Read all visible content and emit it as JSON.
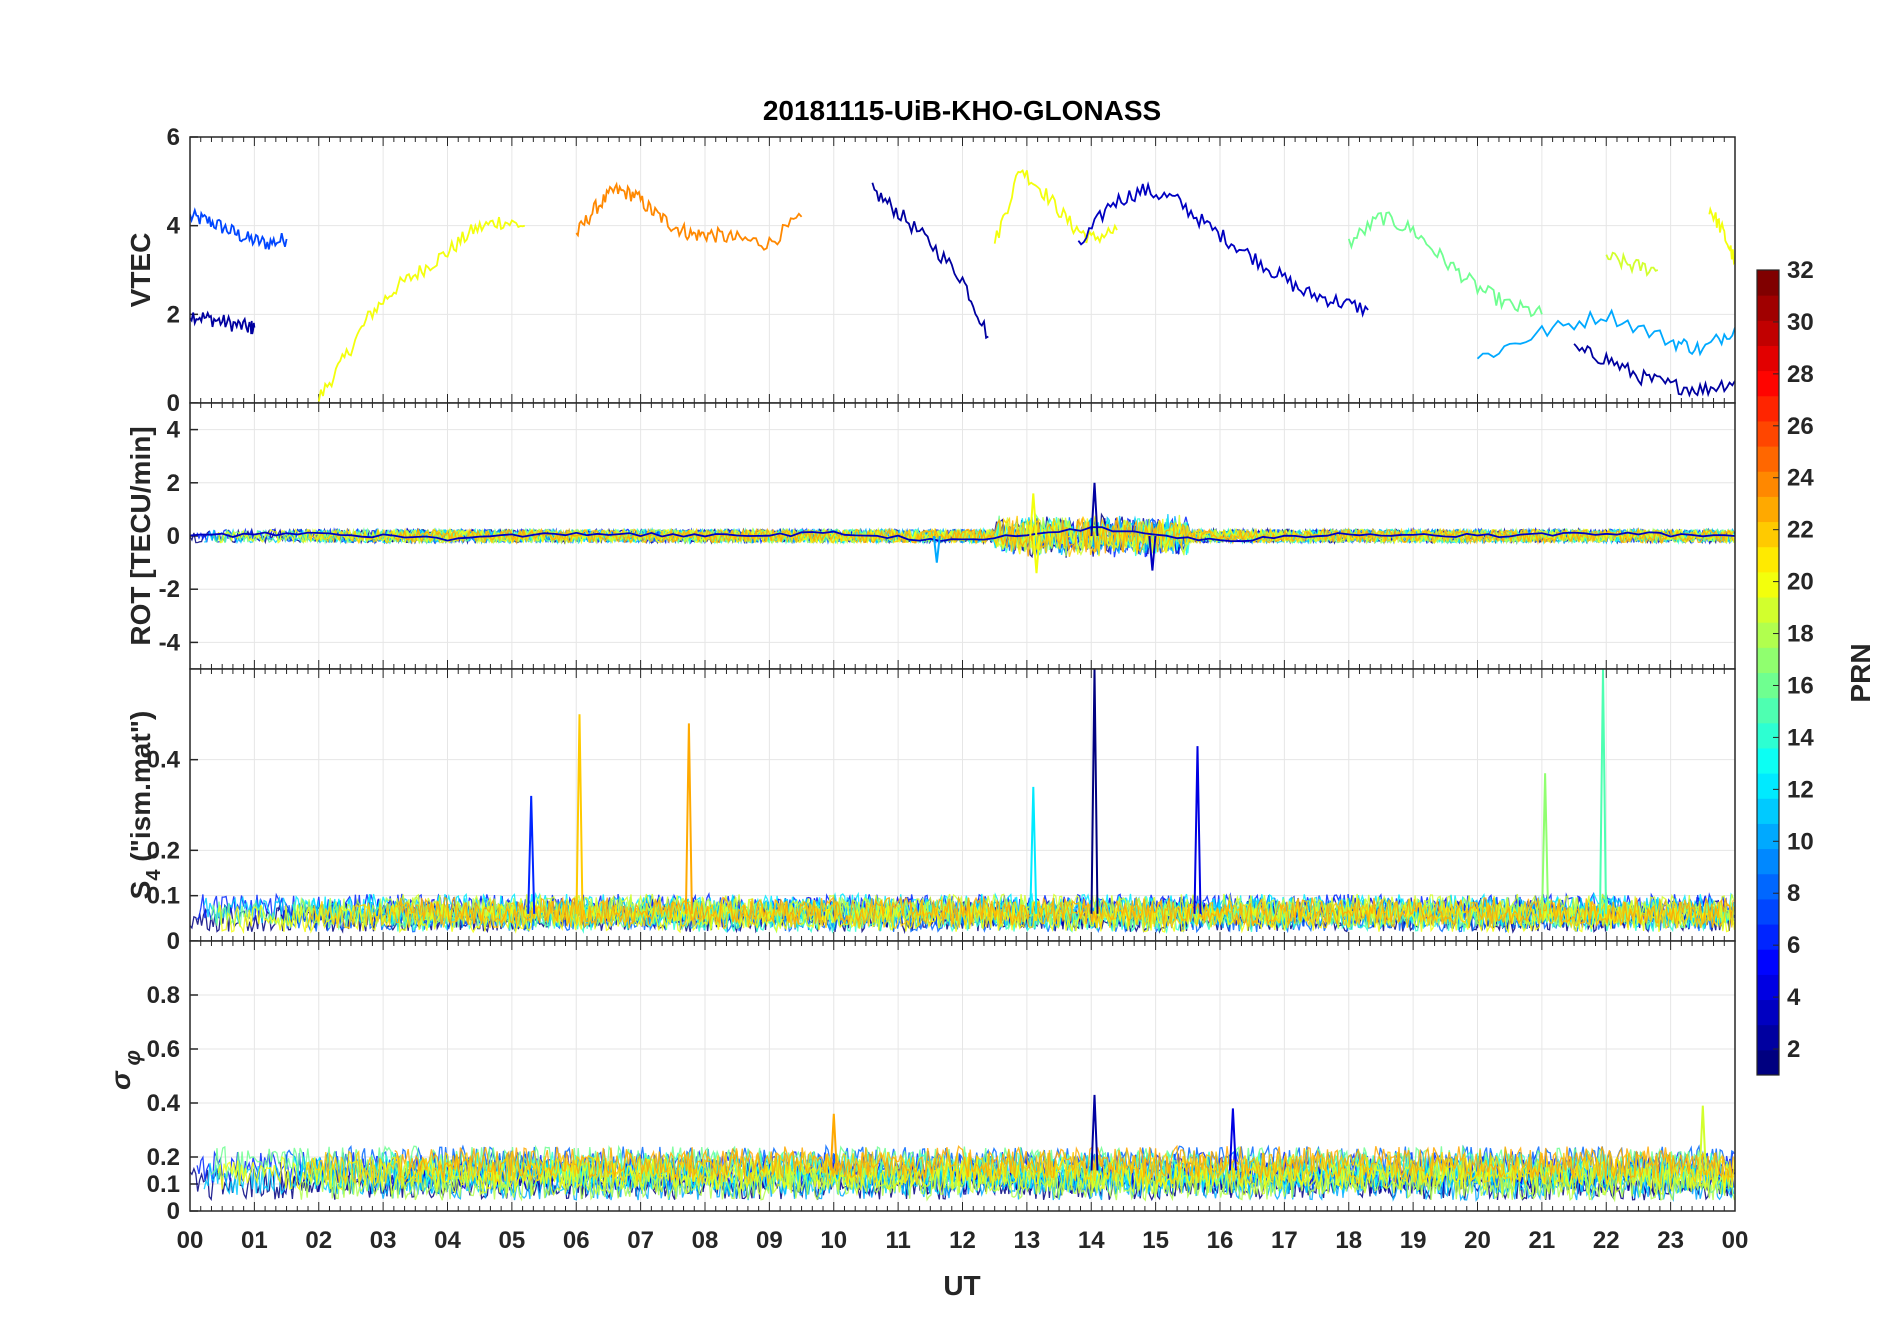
{
  "title": "20181115-UiB-KHO-GLONASS",
  "chart_data": {
    "type": "line",
    "title": "20181115-UiB-KHO-GLONASS",
    "xlabel": "UT",
    "xlim": [
      0,
      24
    ],
    "x_tick_labels": [
      "00",
      "01",
      "02",
      "03",
      "04",
      "05",
      "06",
      "07",
      "08",
      "09",
      "10",
      "11",
      "12",
      "13",
      "14",
      "15",
      "16",
      "17",
      "18",
      "19",
      "20",
      "21",
      "22",
      "23",
      "00"
    ],
    "colorbar": {
      "label": "PRN",
      "range": [
        1,
        32
      ],
      "tick_labels": [
        "2",
        "4",
        "6",
        "8",
        "10",
        "12",
        "14",
        "16",
        "18",
        "20",
        "22",
        "24",
        "26",
        "28",
        "30",
        "32"
      ],
      "colormap": "jet"
    },
    "panels": [
      {
        "ylabel": "VTEC",
        "ylim": [
          0,
          6
        ],
        "y_tick_labels": [
          "0",
          "2",
          "4",
          "6"
        ],
        "series": [
          {
            "prn": 7,
            "x": [
              0,
              0.3,
              0.6,
              0.9,
              1.2,
              1.5
            ],
            "y": [
              4.2,
              4.1,
              3.9,
              3.7,
              3.6,
              3.7
            ]
          },
          {
            "prn": 2,
            "x": [
              0,
              0.3,
              0.6,
              0.9,
              1.0
            ],
            "y": [
              2.0,
              1.9,
              1.8,
              1.7,
              1.7
            ]
          },
          {
            "prn": 20,
            "x": [
              2,
              2.4,
              2.8,
              3.2,
              3.6,
              4.0,
              4.4,
              4.8,
              5.2
            ],
            "y": [
              0.1,
              1.0,
              2.0,
              2.6,
              3.0,
              3.4,
              3.9,
              4.1,
              4.0
            ]
          },
          {
            "prn": 24,
            "x": [
              6.0,
              6.3,
              6.6,
              6.9,
              7.2,
              7.5,
              7.8,
              8.1,
              8.5,
              9.0,
              9.5
            ],
            "y": [
              3.8,
              4.4,
              4.8,
              4.7,
              4.3,
              4.0,
              3.8,
              3.8,
              3.7,
              3.6,
              4.2
            ]
          },
          {
            "prn": 2,
            "x": [
              10.6,
              11,
              11.5,
              12,
              12.4
            ],
            "y": [
              4.8,
              4.3,
              3.6,
              2.8,
              1.5
            ]
          },
          {
            "prn": 20,
            "x": [
              12.5,
              12.9,
              13.3,
              13.7,
              14.0,
              14.4
            ],
            "y": [
              3.6,
              5.3,
              4.7,
              4.0,
              3.7,
              3.9
            ]
          },
          {
            "prn": 3,
            "x": [
              13.8,
              14.3,
              14.8,
              15.3,
              15.8,
              16.3,
              16.8,
              17.3,
              17.8,
              18.3
            ],
            "y": [
              3.5,
              4.5,
              4.8,
              4.6,
              4.0,
              3.5,
              3.0,
              2.5,
              2.3,
              2.1
            ]
          },
          {
            "prn": 16,
            "x": [
              18.0,
              18.5,
              19.0,
              19.5,
              20.0,
              20.5,
              21.0
            ],
            "y": [
              3.6,
              4.2,
              3.9,
              3.2,
              2.6,
              2.2,
              2.0
            ]
          },
          {
            "prn": 19,
            "x": [
              22.0,
              22.4,
              22.8
            ],
            "y": [
              3.3,
              3.1,
              3.0
            ]
          },
          {
            "prn": 20,
            "x": [
              23.6,
              23.8,
              24.0
            ],
            "y": [
              4.4,
              3.9,
              3.2
            ]
          },
          {
            "prn": 2,
            "x": [
              21.5,
              22,
              22.5,
              23,
              23.5,
              24
            ],
            "y": [
              1.2,
              1.0,
              0.6,
              0.4,
              0.3,
              0.5
            ]
          },
          {
            "prn": 10,
            "x": [
              20,
              21,
              22,
              23,
              23.5,
              24
            ],
            "y": [
              1.0,
              1.6,
              2.0,
              1.4,
              1.2,
              1.7
            ]
          }
        ]
      },
      {
        "ylabel": "ROT [TECU/min]",
        "ylim": [
          -5,
          5
        ],
        "y_tick_labels": [
          "-4",
          "-2",
          "0",
          "2",
          "4"
        ],
        "series": [
          {
            "prn": 3,
            "x": [
              0,
              2,
              4,
              6,
              8,
              10,
              12,
              14,
              16,
              18,
              20,
              22,
              24
            ],
            "y": [
              0,
              0.1,
              -0.1,
              0.1,
              0,
              0.1,
              -0.2,
              0.3,
              -0.2,
              0.1,
              0,
              0.1,
              0
            ]
          }
        ],
        "spikes": [
          {
            "prn": 2,
            "x": 14.05,
            "y": 2.0
          },
          {
            "prn": 3,
            "x": 14.95,
            "y": -1.3
          },
          {
            "prn": 20,
            "x": 13.1,
            "y": 1.6
          },
          {
            "prn": 20,
            "x": 13.15,
            "y": -1.4
          },
          {
            "prn": 10,
            "x": 11.6,
            "y": -1.0
          }
        ]
      },
      {
        "ylabel": "S4 (\"ism.mat\")",
        "ylabel_main": "S",
        "ylabel_sub": "4",
        "ylabel_rest": " (\"ism.mat\")",
        "ylim": [
          0,
          0.6
        ],
        "y_tick_labels": [
          "0",
          "0.1",
          "0.2",
          "0.4"
        ],
        "spikes": [
          {
            "prn": 6,
            "x": 5.3,
            "y": 0.32
          },
          {
            "prn": 22,
            "x": 6.05,
            "y": 0.5
          },
          {
            "prn": 23,
            "x": 7.75,
            "y": 0.48
          },
          {
            "prn": 12,
            "x": 13.1,
            "y": 0.34
          },
          {
            "prn": 1,
            "x": 14.05,
            "y": 0.6
          },
          {
            "prn": 4,
            "x": 15.65,
            "y": 0.43
          },
          {
            "prn": 17,
            "x": 21.05,
            "y": 0.37
          },
          {
            "prn": 15,
            "x": 21.95,
            "y": 0.6
          }
        ]
      },
      {
        "ylabel": "σ φ",
        "ylabel_main": "σ",
        "ylabel_sub": "φ",
        "ylim": [
          0,
          1
        ],
        "y_tick_labels": [
          "0",
          "0.1",
          "0.2",
          "0.4",
          "0.6",
          "0.8"
        ],
        "spikes": [
          {
            "prn": 2,
            "x": 14.05,
            "y": 0.43
          },
          {
            "prn": 19,
            "x": 23.5,
            "y": 0.39
          },
          {
            "prn": 4,
            "x": 16.2,
            "y": 0.38
          },
          {
            "prn": 23,
            "x": 10.0,
            "y": 0.36
          }
        ]
      }
    ]
  }
}
